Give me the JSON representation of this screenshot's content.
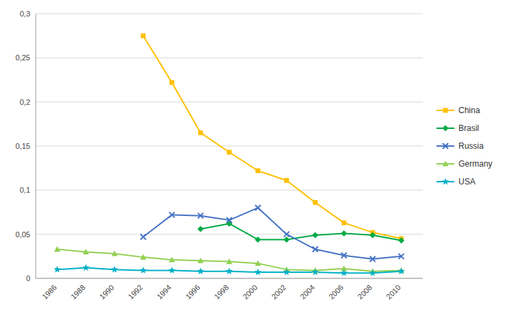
{
  "chart_data": {
    "type": "line",
    "x": [
      1986,
      1988,
      1990,
      1992,
      1994,
      1996,
      1998,
      2000,
      2002,
      2004,
      2006,
      2008,
      2010
    ],
    "series": [
      {
        "name": "China",
        "color": "#FFC000",
        "marker": "square",
        "values": [
          null,
          null,
          null,
          0.275,
          0.222,
          0.165,
          0.143,
          0.122,
          0.111,
          0.086,
          0.063,
          0.052,
          0.045
        ]
      },
      {
        "name": "Brasil",
        "color": "#00AA44",
        "marker": "diamond",
        "values": [
          null,
          null,
          null,
          null,
          null,
          0.056,
          0.062,
          0.044,
          0.044,
          0.049,
          0.051,
          0.049,
          0.043
        ]
      },
      {
        "name": "Russia",
        "color": "#4472C4",
        "marker": "x",
        "values": [
          null,
          null,
          null,
          0.047,
          0.072,
          0.071,
          0.066,
          0.08,
          0.05,
          0.033,
          0.026,
          0.022,
          0.025
        ]
      },
      {
        "name": "Germany",
        "color": "#92D050",
        "marker": "triangle",
        "values": [
          0.033,
          0.03,
          0.028,
          0.024,
          0.021,
          0.02,
          0.019,
          0.017,
          0.01,
          0.009,
          0.011,
          0.008,
          0.009
        ]
      },
      {
        "name": "USA",
        "color": "#00B0C8",
        "marker": "star",
        "values": [
          0.01,
          0.012,
          0.01,
          0.009,
          0.009,
          0.008,
          0.008,
          0.007,
          0.007,
          0.007,
          0.006,
          0.006,
          0.008
        ]
      }
    ],
    "xlim": [
      1984.5,
      2011.5
    ],
    "xticks": [
      1986,
      1988,
      1990,
      1992,
      1994,
      1996,
      1998,
      2000,
      2002,
      2004,
      2006,
      2008,
      2010
    ],
    "ylim": [
      0,
      0.3
    ],
    "yticks": [
      0,
      {
        "value": 0.05,
        "label": "0,05"
      },
      {
        "value": 0.1,
        "label": "0,1"
      },
      {
        "value": 0.15,
        "label": "0,15"
      },
      {
        "value": 0.2,
        "label": "0,2"
      },
      {
        "value": 0.25,
        "label": "0,25"
      },
      {
        "value": 0.3,
        "label": "0,3"
      }
    ],
    "grid": true,
    "legend": "right"
  }
}
